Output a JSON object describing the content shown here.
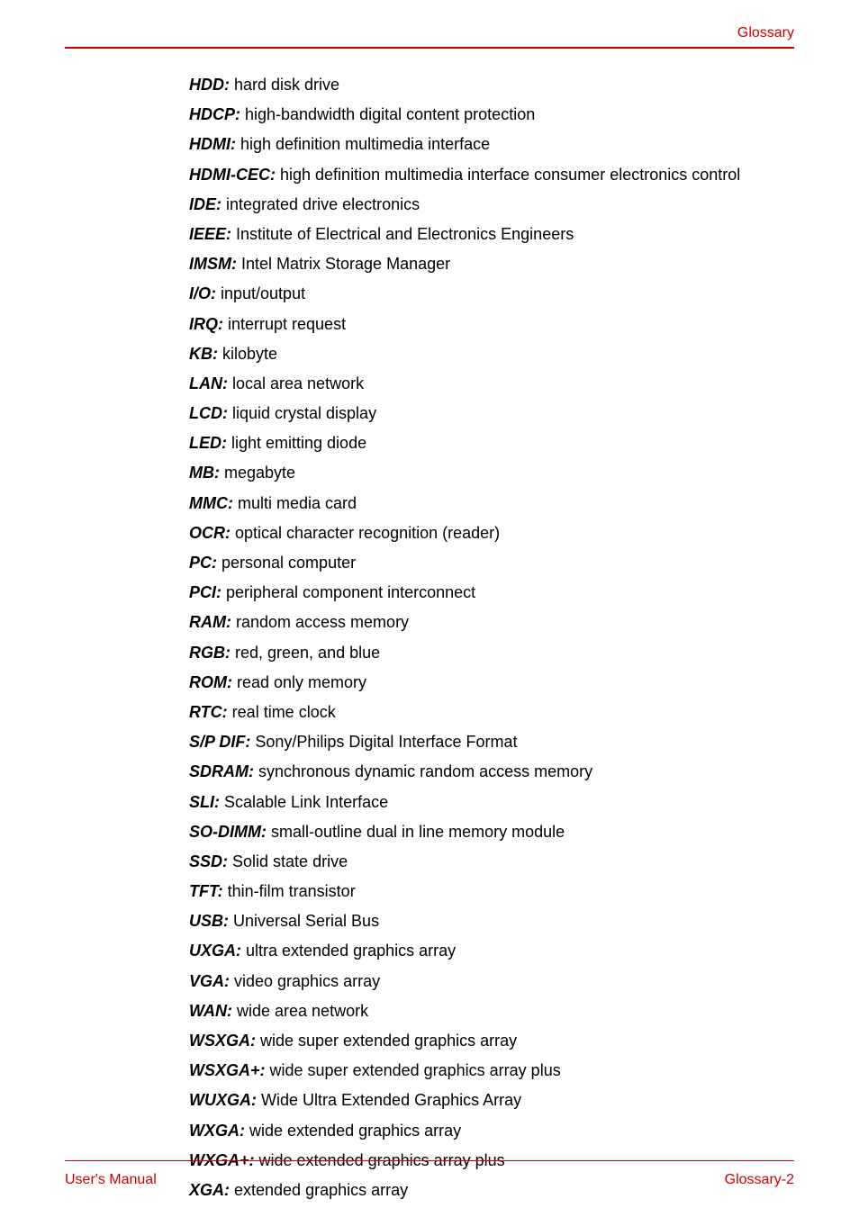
{
  "header": {
    "title": "Glossary"
  },
  "glossary": [
    {
      "term": "HDD:",
      "def": "hard disk drive"
    },
    {
      "term": "HDCP:",
      "def": "high-bandwidth digital content protection"
    },
    {
      "term": "HDMI:",
      "def": "high definition multimedia interface"
    },
    {
      "term": "HDMI-CEC:",
      "def": "high definition multimedia interface consumer electronics control"
    },
    {
      "term": "IDE:",
      "def": "integrated drive electronics"
    },
    {
      "term": "IEEE:",
      "def": "Institute of Electrical and Electronics Engineers"
    },
    {
      "term": "IMSM:",
      "def": "Intel Matrix Storage Manager"
    },
    {
      "term": "I/O:",
      "def": "input/output"
    },
    {
      "term": "IRQ:",
      "def": "interrupt request"
    },
    {
      "term": "KB:",
      "def": "kilobyte"
    },
    {
      "term": "LAN:",
      "def": "local area network"
    },
    {
      "term": "LCD:",
      "def": "liquid crystal display"
    },
    {
      "term": "LED:",
      "def": "light emitting diode"
    },
    {
      "term": "MB:",
      "def": "megabyte"
    },
    {
      "term": "MMC:",
      "def": "multi media card"
    },
    {
      "term": "OCR:",
      "def": "optical character recognition (reader)"
    },
    {
      "term": "PC:",
      "def": "personal computer"
    },
    {
      "term": "PCI:",
      "def": "peripheral component interconnect"
    },
    {
      "term": "RAM:",
      "def": "random access memory"
    },
    {
      "term": "RGB:",
      "def": "red, green, and blue"
    },
    {
      "term": "ROM:",
      "def": "read only memory"
    },
    {
      "term": "RTC:",
      "def": "real time clock"
    },
    {
      "term": "S/P DIF:",
      "def": "Sony/Philips Digital Interface Format"
    },
    {
      "term": "SDRAM:",
      "def": "synchronous dynamic random access memory"
    },
    {
      "term": "SLI:",
      "def": "Scalable Link Interface"
    },
    {
      "term": "SO-DIMM:",
      "def": "small-outline dual in line memory module"
    },
    {
      "term": "SSD:",
      "def": "Solid state drive"
    },
    {
      "term": "TFT:",
      "def": "thin-film transistor"
    },
    {
      "term": "USB:",
      "def": "Universal Serial Bus"
    },
    {
      "term": "UXGA:",
      "def": "ultra extended graphics array"
    },
    {
      "term": "VGA:",
      "def": "video graphics array"
    },
    {
      "term": "WAN:",
      "def": "wide area network"
    },
    {
      "term": "WSXGA:",
      "def": "wide super extended graphics array"
    },
    {
      "term": "WSXGA+:",
      "def": "wide super extended graphics array plus"
    },
    {
      "term": "WUXGA:",
      "def": "Wide Ultra Extended Graphics Array"
    },
    {
      "term": "WXGA:",
      "def": "wide extended graphics array"
    },
    {
      "term": "WXGA+:",
      "def": "wide extended graphics array plus"
    },
    {
      "term": "XGA:",
      "def": "extended graphics array"
    }
  ],
  "footer": {
    "left": "User's Manual",
    "right": "Glossary-2"
  },
  "colors": {
    "accent": "#cc0000",
    "text": "#000000",
    "background": "#ffffff"
  },
  "typography": {
    "body_fontsize": 18,
    "header_footer_fontsize": 16
  }
}
